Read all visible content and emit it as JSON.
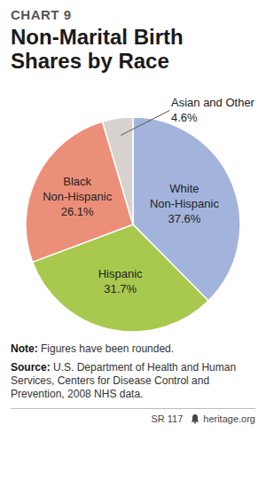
{
  "chart_data": {
    "type": "pie",
    "chart_number": "CHART 9",
    "title": "Non-Marital Birth Shares by Race",
    "categories": [
      "White Non-Hispanic",
      "Hispanic",
      "Black Non-Hispanic",
      "Asian and Other"
    ],
    "values": [
      37.6,
      31.7,
      26.1,
      4.6
    ],
    "value_labels": [
      "37.6%",
      "31.7%",
      "26.1%",
      "4.6%"
    ],
    "colors": [
      "#a3b4dc",
      "#a8c94e",
      "#ec8f79",
      "#d8d2cf"
    ],
    "data_labels": true,
    "note": {
      "label": "Note:",
      "text": "Figures have been rounded."
    },
    "source": {
      "label": "Source:",
      "text": "U.S. Department of Health and Human Services, Centers for Disease Control and Prevention, 2008 NHS data."
    },
    "report": "SR 117",
    "site": "heritage.org"
  }
}
